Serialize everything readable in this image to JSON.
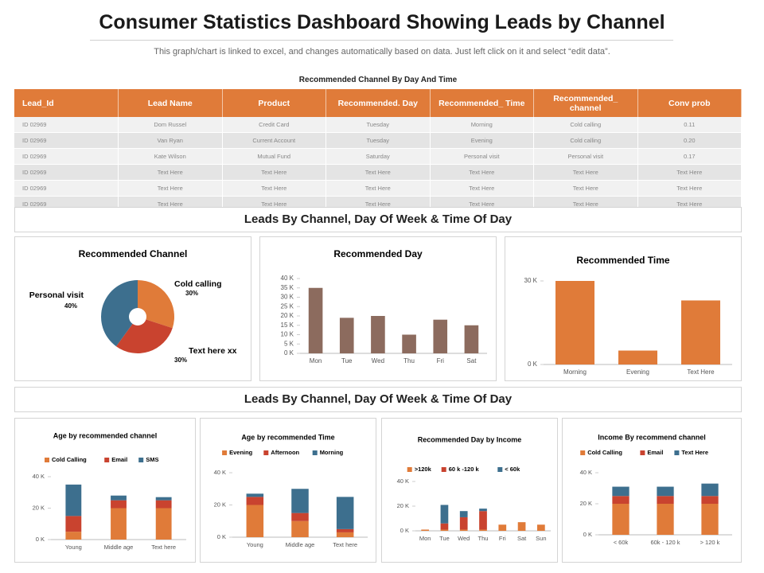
{
  "header": {
    "title": "Consumer Statistics Dashboard Showing Leads by Channel",
    "subtitle": "This graph/chart is linked to excel, and changes automatically based on data. Just left click on it and select “edit data”."
  },
  "table": {
    "title": "Recommended Channel By Day And Time",
    "columns": [
      "Lead_Id",
      "Lead Name",
      "Product",
      "Recommended. Day",
      "Recommended_ Time",
      "Recommended_ channel",
      "Conv prob"
    ],
    "rows": [
      [
        "ID 02969",
        "Dom Russel",
        "Credit Card",
        "Tuesday",
        "Morning",
        "Cold calling",
        "0.11"
      ],
      [
        "ID 02969",
        "Van Ryan",
        "Current Account",
        "Tuesday",
        "Evening",
        "Cold calling",
        "0.20"
      ],
      [
        "ID 02969",
        "Kate Wilson",
        "Mutual Fund",
        "Saturday",
        "Personal visit",
        "Personal visit",
        "0.17"
      ],
      [
        "ID 02969",
        "Text Here",
        "Text Here",
        "Text Here",
        "Text Here",
        "Text Here",
        "Text Here"
      ],
      [
        "ID 02969",
        "Text Here",
        "Text Here",
        "Text Here",
        "Text Here",
        "Text Here",
        "Text Here"
      ],
      [
        "ID 02969",
        "Text Here",
        "Text Here",
        "Text Here",
        "Text Here",
        "Text Here",
        "Text Here"
      ]
    ]
  },
  "sections": [
    "Leads By Channel, Day Of Week & Time Of Day",
    "Leads By Channel, Day Of Week & Time Of Day"
  ],
  "chart_data": [
    {
      "type": "pie",
      "title": "Recommended  Channel",
      "categories": [
        "Cold calling",
        "Text here xx",
        "Personal visit"
      ],
      "values": [
        30,
        30,
        40
      ],
      "value_labels": [
        "30%",
        "30%",
        "40%"
      ],
      "colors": [
        "#e07b39",
        "#c9432f",
        "#3d6f8e"
      ]
    },
    {
      "type": "bar",
      "title": "Recommended  Day",
      "categories": [
        "Mon",
        "Tue",
        "Wed",
        "Thu",
        "Fri",
        "Sat"
      ],
      "values": [
        35,
        19,
        20,
        10,
        18,
        15
      ],
      "color": "#8c6b5e",
      "ylim": [
        0,
        40
      ],
      "yticks": [
        {
          "value": 0,
          "label": "0 K"
        },
        {
          "value": 5,
          "label": "5 K"
        },
        {
          "value": 10,
          "label": "10 K"
        },
        {
          "value": 15,
          "label": "15 K"
        },
        {
          "value": 20,
          "label": "20 K"
        },
        {
          "value": 25,
          "label": "25 K"
        },
        {
          "value": 30,
          "label": "30 K"
        },
        {
          "value": 35,
          "label": "35 K"
        },
        {
          "value": 40,
          "label": "40 K"
        }
      ]
    },
    {
      "type": "bar",
      "title": "Recommended  Time",
      "categories": [
        "Morning",
        "Evening",
        "Text Here"
      ],
      "values": [
        30,
        5,
        23
      ],
      "color": "#e07b39",
      "ylim": [
        0,
        30
      ],
      "yticks": [
        {
          "value": 0,
          "label": "0 K"
        },
        {
          "value": 30,
          "label": "30 K"
        }
      ]
    },
    {
      "type": "bar",
      "stacked": true,
      "title": "Age by recommended  channel",
      "categories": [
        "Young",
        "Middle age",
        "Text here"
      ],
      "series": [
        {
          "name": "Cold Calling",
          "color": "#e07b39",
          "values": [
            5,
            20,
            20
          ]
        },
        {
          "name": "Email",
          "color": "#c9432f",
          "values": [
            10,
            5,
            5
          ]
        },
        {
          "name": "SMS",
          "color": "#3d6f8e",
          "values": [
            20,
            3,
            2
          ]
        }
      ],
      "ylim": [
        0,
        40
      ],
      "yticks": [
        {
          "value": 0,
          "label": "0 K"
        },
        {
          "value": 20,
          "label": "20 K"
        },
        {
          "value": 40,
          "label": "40 K"
        }
      ]
    },
    {
      "type": "bar",
      "stacked": true,
      "title": "Age by recommended  Time",
      "categories": [
        "Young",
        "Middle age",
        "Text here"
      ],
      "series": [
        {
          "name": "Evening",
          "color": "#e07b39",
          "values": [
            20,
            10,
            3
          ]
        },
        {
          "name": "Afternoon",
          "color": "#c9432f",
          "values": [
            5,
            5,
            2
          ]
        },
        {
          "name": "Morning",
          "color": "#3d6f8e",
          "values": [
            2,
            15,
            20
          ]
        }
      ],
      "ylim": [
        0,
        40
      ],
      "yticks": [
        {
          "value": 0,
          "label": "0 K"
        },
        {
          "value": 20,
          "label": "20 K"
        },
        {
          "value": 40,
          "label": "40 K"
        }
      ]
    },
    {
      "type": "bar",
      "stacked": true,
      "title": "Recommended  Day  by Income",
      "categories": [
        "Mon",
        "Tue",
        "Wed",
        "Thu",
        "Fri",
        "Sat",
        "Sun"
      ],
      "series": [
        {
          "name": ">120k",
          "color": "#e07b39",
          "values": [
            1,
            1,
            1,
            1,
            5,
            7,
            5
          ]
        },
        {
          "name": "60 k -120 k",
          "color": "#c9432f",
          "values": [
            0,
            5,
            10,
            15,
            0,
            0,
            0
          ]
        },
        {
          "name": "< 60k",
          "color": "#3d6f8e",
          "values": [
            0,
            15,
            5,
            2,
            0,
            0,
            0
          ]
        }
      ],
      "ylim": [
        0,
        40
      ],
      "yticks": [
        {
          "value": 0,
          "label": "0 K"
        },
        {
          "value": 20,
          "label": "20 K"
        },
        {
          "value": 40,
          "label": "40 K"
        }
      ]
    },
    {
      "type": "bar",
      "stacked": true,
      "title": "Income  By recommend channel",
      "categories": [
        "< 60k",
        "60k - 120 k",
        "> 120 k"
      ],
      "series": [
        {
          "name": "Cold Calling",
          "color": "#e07b39",
          "values": [
            20,
            20,
            20
          ]
        },
        {
          "name": "Email",
          "color": "#c9432f",
          "values": [
            5,
            5,
            5
          ]
        },
        {
          "name": "Text Here",
          "color": "#3d6f8e",
          "values": [
            6,
            6,
            8
          ]
        }
      ],
      "ylim": [
        0,
        40
      ],
      "yticks": [
        {
          "value": 0,
          "label": "0 K"
        },
        {
          "value": 20,
          "label": "20 K"
        },
        {
          "value": 40,
          "label": "40 K"
        }
      ]
    }
  ]
}
